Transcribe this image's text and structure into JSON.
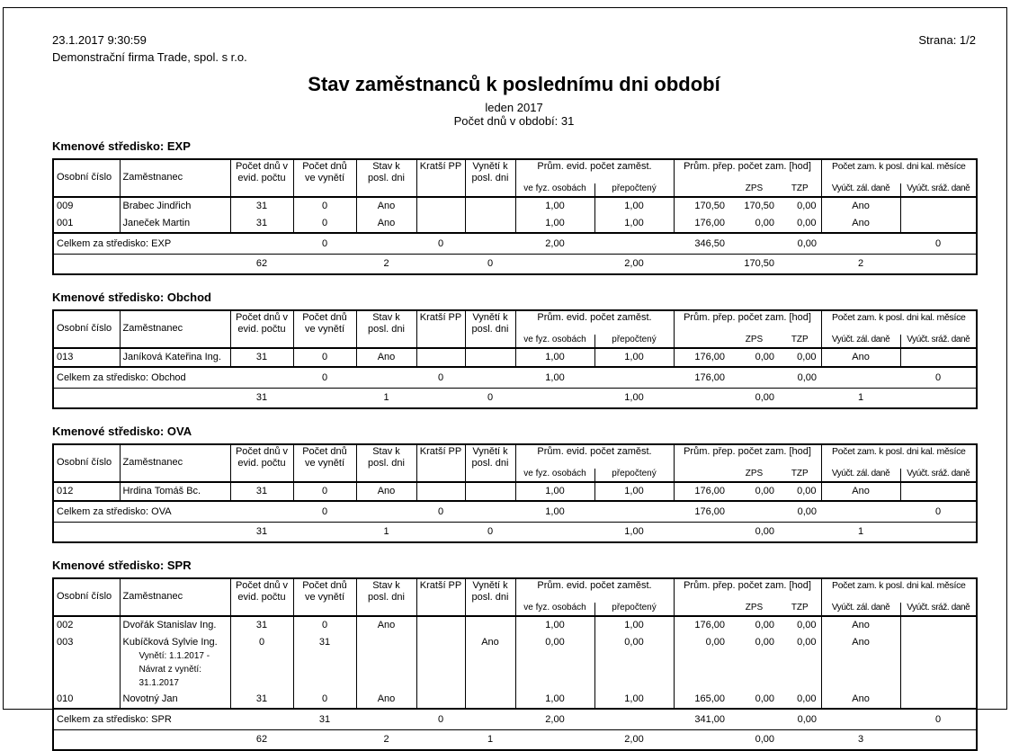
{
  "page": {
    "datetime": "23.1.2017 9:30:59",
    "company": "Demonstrační firma Trade, spol. s r.o.",
    "page_number": "Strana: 1/2",
    "title": "Stav zaměstnanců k poslednímu dni období",
    "period": "leden 2017",
    "days_in_period": "Počet dnů v období: 31"
  },
  "table_headers": {
    "osobni_cislo": "Osobní číslo",
    "zamestnanec": "Zaměstnanec",
    "pocet_dnu_evid": [
      "Počet dnů v",
      "evid. počtu"
    ],
    "pocet_dnu_vyneti": [
      "Počet dnů",
      "ve vynětí"
    ],
    "stav_k_posl_dni": [
      "Stav k",
      "posl. dni"
    ],
    "kratsi_pp": "Kratší PP",
    "vyneti_k_posl_dni": [
      "Vynětí k",
      "posl. dni"
    ],
    "prum_evid_pocet_zamest": "Prům. evid. počet zaměst.",
    "ve_fyz_osobach": "ve fyz. osobách",
    "prepocteny": "přepočtený",
    "prum_prep_pocet_zam": "Prům. přep. počet zam. [hod]",
    "zps": "ZPS",
    "tzp": "TZP",
    "pocet_zam_k_posl": "Počet zam. k posl. dni kal. měsíce",
    "vyuct_zal_dane": "Vyúčt. zál. daně",
    "vyuct_sraz_dane": "Vyúčt. sráž. daně"
  },
  "sections": [
    {
      "label": "Kmenové středisko: EXP",
      "total_label": "Celkem za středisko: EXP",
      "rows": [
        {
          "id": "009",
          "name": "Brabec Jindřich",
          "sub": [],
          "dny_evid": "31",
          "dny_vyneti": "0",
          "stav": "Ano",
          "kratsi": "",
          "vyneti": "",
          "fyz": "1,00",
          "prep": "1,00",
          "hod": "170,50",
          "zps": "170,50",
          "tzp": "0,00",
          "zal": "Ano",
          "sraz": ""
        },
        {
          "id": "001",
          "name": "Janeček Martin",
          "sub": [],
          "dny_evid": "31",
          "dny_vyneti": "0",
          "stav": "Ano",
          "kratsi": "",
          "vyneti": "",
          "fyz": "1,00",
          "prep": "1,00",
          "hod": "176,00",
          "zps": "0,00",
          "tzp": "0,00",
          "zal": "Ano",
          "sraz": ""
        }
      ],
      "total1": {
        "dny_vyneti": "0",
        "kratsi": "0",
        "fyz": "2,00",
        "hod": "346,50",
        "tzp": "0,00",
        "sraz": "0"
      },
      "total2": {
        "dny_evid": "62",
        "stav": "2",
        "vyneti": "0",
        "prep": "2,00",
        "zps": "170,50",
        "zal": "2"
      }
    },
    {
      "label": "Kmenové středisko: Obchod",
      "total_label": "Celkem za středisko: Obchod",
      "rows": [
        {
          "id": "013",
          "name": "Janíková Kateřina Ing.",
          "sub": [],
          "dny_evid": "31",
          "dny_vyneti": "0",
          "stav": "Ano",
          "kratsi": "",
          "vyneti": "",
          "fyz": "1,00",
          "prep": "1,00",
          "hod": "176,00",
          "zps": "0,00",
          "tzp": "0,00",
          "zal": "Ano",
          "sraz": ""
        }
      ],
      "total1": {
        "dny_vyneti": "0",
        "kratsi": "0",
        "fyz": "1,00",
        "hod": "176,00",
        "tzp": "0,00",
        "sraz": "0"
      },
      "total2": {
        "dny_evid": "31",
        "stav": "1",
        "vyneti": "0",
        "prep": "1,00",
        "zps": "0,00",
        "zal": "1"
      }
    },
    {
      "label": "Kmenové středisko: OVA",
      "total_label": "Celkem za středisko: OVA",
      "rows": [
        {
          "id": "012",
          "name": "Hrdina Tomáš Bc.",
          "sub": [],
          "dny_evid": "31",
          "dny_vyneti": "0",
          "stav": "Ano",
          "kratsi": "",
          "vyneti": "",
          "fyz": "1,00",
          "prep": "1,00",
          "hod": "176,00",
          "zps": "0,00",
          "tzp": "0,00",
          "zal": "Ano",
          "sraz": ""
        }
      ],
      "total1": {
        "dny_vyneti": "0",
        "kratsi": "0",
        "fyz": "1,00",
        "hod": "176,00",
        "tzp": "0,00",
        "sraz": "0"
      },
      "total2": {
        "dny_evid": "31",
        "stav": "1",
        "vyneti": "0",
        "prep": "1,00",
        "zps": "0,00",
        "zal": "1"
      }
    },
    {
      "label": "Kmenové středisko: SPR",
      "total_label": "Celkem za středisko: SPR",
      "rows": [
        {
          "id": "002",
          "name": "Dvořák Stanislav Ing.",
          "sub": [],
          "dny_evid": "31",
          "dny_vyneti": "0",
          "stav": "Ano",
          "kratsi": "",
          "vyneti": "",
          "fyz": "1,00",
          "prep": "1,00",
          "hod": "176,00",
          "zps": "0,00",
          "tzp": "0,00",
          "zal": "Ano",
          "sraz": ""
        },
        {
          "id": "003",
          "name": "Kubíčková Sylvie Ing.",
          "sub": [
            "Vynětí: 1.1.2017 -",
            "Návrat z vynětí: 31.1.2017"
          ],
          "dny_evid": "0",
          "dny_vyneti": "31",
          "stav": "",
          "kratsi": "",
          "vyneti": "Ano",
          "fyz": "0,00",
          "prep": "0,00",
          "hod": "0,00",
          "zps": "0,00",
          "tzp": "0,00",
          "zal": "Ano",
          "sraz": ""
        },
        {
          "id": "010",
          "name": "Novotný Jan",
          "sub": [],
          "dny_evid": "31",
          "dny_vyneti": "0",
          "stav": "Ano",
          "kratsi": "",
          "vyneti": "",
          "fyz": "1,00",
          "prep": "1,00",
          "hod": "165,00",
          "zps": "0,00",
          "tzp": "0,00",
          "zal": "Ano",
          "sraz": ""
        }
      ],
      "total1": {
        "dny_vyneti": "31",
        "kratsi": "0",
        "fyz": "2,00",
        "hod": "341,00",
        "tzp": "0,00",
        "sraz": "0"
      },
      "total2": {
        "dny_evid": "62",
        "stav": "2",
        "vyneti": "1",
        "prep": "2,00",
        "zps": "0,00",
        "zal": "3"
      }
    }
  ]
}
